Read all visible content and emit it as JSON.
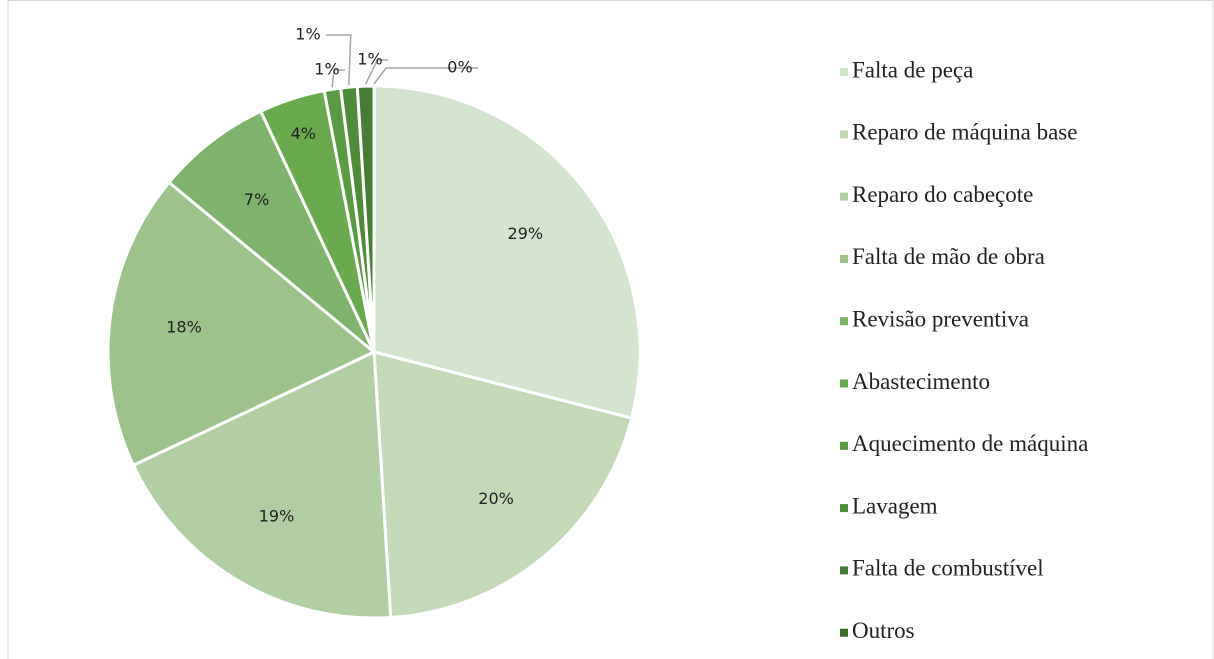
{
  "chart_data": {
    "type": "pie",
    "categories": [
      "Falta de peça",
      "Reparo de máquina base",
      "Reparo do cabeçote",
      "Falta de mão de obra",
      "Revisão preventiva",
      "Abastecimento",
      "Aquecimento de máquina",
      "Lavagem",
      "Falta de combustível",
      "Outros"
    ],
    "values": [
      29,
      20,
      19,
      18,
      7,
      4,
      1,
      1,
      1,
      0
    ],
    "value_labels": [
      "29%",
      "20%",
      "19%",
      "18%",
      "7%",
      "4%",
      "1%",
      "1%",
      "1%",
      "0%"
    ],
    "colors": [
      "#d5e4cf",
      "#c3d9b8",
      "#b0cea2",
      "#9dc38b",
      "#7db36a",
      "#6aaa4e",
      "#5a9a42",
      "#4f8c3a",
      "#467c34",
      "#3b6c2c"
    ],
    "legend": "right"
  }
}
